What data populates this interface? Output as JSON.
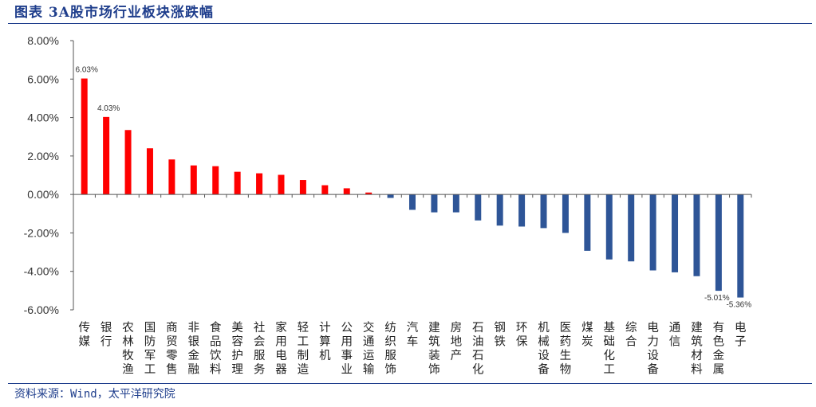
{
  "header": {
    "title": "图表 3A股市场行业板块涨跌幅"
  },
  "footer": {
    "source": "资料来源：Wind，太平洋研究院"
  },
  "chart_data": {
    "type": "bar",
    "title": "图表 3A股市场行业板块涨跌幅",
    "xlabel": "",
    "ylabel": "",
    "ylim": [
      -6.0,
      8.0
    ],
    "y_ticks": [
      "8.00%",
      "6.00%",
      "4.00%",
      "2.00%",
      "0.00%",
      "-2.00%",
      "-4.00%",
      "-6.00%"
    ],
    "y_tick_values": [
      8,
      6,
      4,
      2,
      0,
      -2,
      -4,
      -6
    ],
    "grid": false,
    "positive_color": "#ff0000",
    "negative_color": "#2e5597",
    "categories": [
      "传媒",
      "银行",
      "农林牧渔",
      "国防军工",
      "商贸零售",
      "非银金融",
      "食品饮料",
      "美容护理",
      "社会服务",
      "家用电器",
      "轻工制造",
      "计算机",
      "公用事业",
      "交通运输",
      "纺织服饰",
      "汽车",
      "建筑装饰",
      "房地产",
      "石油石化",
      "钢铁",
      "环保",
      "机械设备",
      "医药生物",
      "煤炭",
      "基础化工",
      "综合",
      "电力设备",
      "通信",
      "建筑材料",
      "有色金属",
      "电子"
    ],
    "values": [
      6.03,
      4.03,
      3.35,
      2.4,
      1.82,
      1.51,
      1.47,
      1.18,
      1.1,
      1.02,
      0.75,
      0.48,
      0.32,
      0.1,
      -0.18,
      -0.8,
      -0.93,
      -0.93,
      -1.35,
      -1.62,
      -1.67,
      -1.75,
      -2.0,
      -2.93,
      -3.38,
      -3.48,
      -3.95,
      -4.05,
      -4.25,
      -5.01,
      -5.36
    ],
    "data_labels": [
      {
        "index": 0,
        "text": "6.03%"
      },
      {
        "index": 1,
        "text": "4.03%"
      },
      {
        "index": 29,
        "text": "-5.01%"
      },
      {
        "index": 30,
        "text": "-5.36%"
      }
    ]
  }
}
